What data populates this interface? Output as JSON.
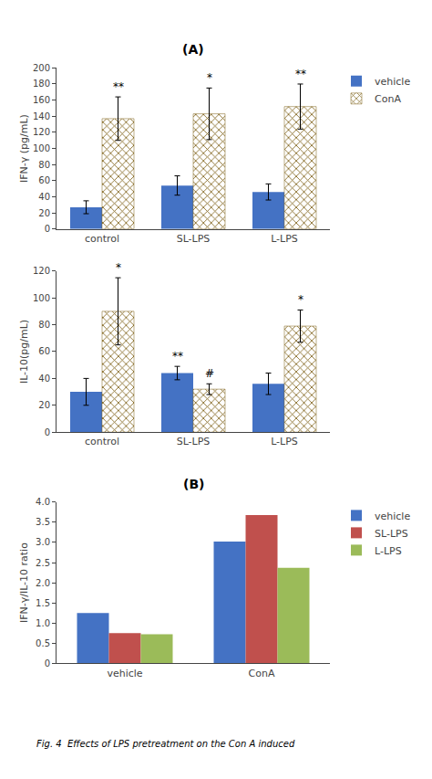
{
  "chart_data": [
    {
      "type": "bar",
      "title": "(A)",
      "categories": [
        "control",
        "SL-LPS",
        "L-LPS"
      ],
      "series": [
        {
          "name": "vehicle",
          "color": "#4472C4",
          "values": [
            27,
            54,
            46
          ],
          "errors": [
            8,
            12,
            10
          ]
        },
        {
          "name": "ConA",
          "color": "#C8A044",
          "values": [
            137,
            143,
            152
          ],
          "errors": [
            27,
            32,
            28
          ],
          "annotations": [
            "**",
            "*",
            "**"
          ]
        }
      ],
      "ylabel": "IFN-γ (pg/mL)",
      "ylim": [
        0,
        200
      ],
      "yticks": [
        0,
        20,
        40,
        60,
        80,
        100,
        120,
        140,
        160,
        180,
        200
      ],
      "grid": false,
      "legend": "upper right"
    },
    {
      "type": "bar",
      "categories": [
        "control",
        "SL-LPS",
        "L-LPS"
      ],
      "series": [
        {
          "name": "vehicle",
          "color": "#4472C4",
          "values": [
            30,
            44,
            36
          ],
          "errors": [
            10,
            5,
            8
          ],
          "annotations": [
            null,
            "**",
            null
          ]
        },
        {
          "name": "ConA",
          "color": "#C8A044",
          "values": [
            90,
            32,
            79
          ],
          "errors": [
            25,
            4,
            12
          ],
          "annotations": [
            "*",
            "#",
            "*"
          ]
        }
      ],
      "ylabel": "IL-10(pg/mL)",
      "ylim": [
        0,
        120
      ],
      "yticks": [
        0,
        20,
        40,
        60,
        80,
        100,
        120
      ],
      "grid": false
    },
    {
      "type": "bar",
      "title": "(B)",
      "categories": [
        "vehicle",
        "ConA"
      ],
      "series": [
        {
          "name": "vehicle",
          "color": "#4472C4",
          "values": [
            1.25,
            3.02
          ]
        },
        {
          "name": "SL-LPS",
          "color": "#C0504D",
          "values": [
            0.75,
            3.68
          ]
        },
        {
          "name": "L-LPS",
          "color": "#9BBB59",
          "values": [
            0.72,
            2.37
          ]
        }
      ],
      "ylabel": "IFN-γ/IL-10 ratio",
      "ylim": [
        0,
        4
      ],
      "yticks": [
        0,
        0.5,
        {
          "value": 1,
          "label": "1.0"
        },
        1.5,
        {
          "value": 2,
          "label": "2.0"
        },
        2.5,
        {
          "value": 3,
          "label": "3.0"
        },
        3.5,
        {
          "value": 4,
          "label": "4.0"
        }
      ],
      "grid": false,
      "legend": "upper right"
    }
  ],
  "caption": "Fig. 4  Effects of LPS pretreatment on the Con A induced"
}
